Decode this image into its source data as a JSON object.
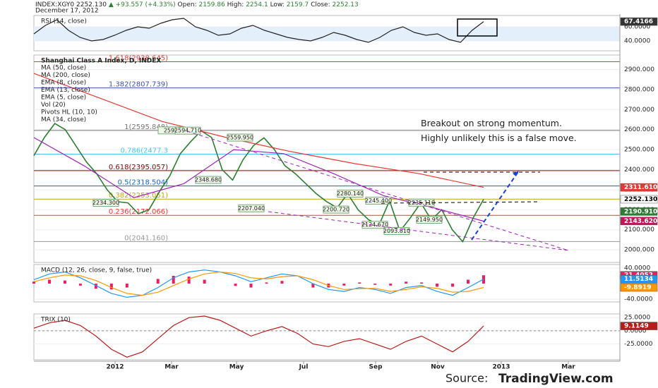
{
  "header": {
    "symbol": "INDEX:XGY0",
    "last": "2252.130",
    "change": "▲ +93.557 (+4.33%)",
    "open_label": "Open:",
    "open": "2159.86",
    "high_label": "High:",
    "high": "2254.1",
    "low_label": "Low:",
    "low": "2159.7",
    "close_label": "Close:",
    "close": "2252.13",
    "date": "December 17, 2012"
  },
  "chart_data": [
    {
      "type": "line",
      "title": "RSI (14, close)",
      "ylim": [
        26,
        76
      ],
      "yticks": [
        {
          "value": 60,
          "label": "60.0000"
        },
        {
          "value": 40,
          "label": "40.0000"
        }
      ],
      "band_fill": "#e3effb",
      "series": [
        {
          "color": "#222222",
          "values": [
            50,
            62,
            70,
            55,
            45,
            40,
            42,
            48,
            55,
            60,
            58,
            65,
            70,
            72,
            60,
            55,
            48,
            50,
            58,
            62,
            55,
            50,
            45,
            42,
            40,
            45,
            52,
            48,
            42,
            38,
            45,
            55,
            60,
            52,
            48,
            50,
            42,
            38,
            55,
            67.4166
          ]
        }
      ],
      "badges": [
        {
          "value": 67.4166,
          "label": "67.4166",
          "color": "#333333"
        }
      ]
    },
    {
      "type": "line",
      "title": "Shanghai Class A Index, D, INDEX",
      "ylim": [
        1937,
        2972
      ],
      "yticks": [
        {
          "value": 2900,
          "label": "2900.000"
        },
        {
          "value": 2800,
          "label": "2800.000"
        },
        {
          "value": 2700,
          "label": "2700.000"
        },
        {
          "value": 2600,
          "label": "2600.000"
        },
        {
          "value": 2500,
          "label": "2500.000"
        },
        {
          "value": 2400,
          "label": "2400.000"
        },
        {
          "value": 2300,
          "label": "2300.000"
        },
        {
          "value": 2200,
          "label": "2200.000"
        },
        {
          "value": 2100,
          "label": "2100.000"
        },
        {
          "value": 2000,
          "label": "2000.000"
        }
      ],
      "series": [
        {
          "color": "#2e7d32",
          "values": [
            2470,
            2560,
            2630,
            2600,
            2520,
            2440,
            2380,
            2300,
            2240,
            2234,
            2180,
            2200,
            2290,
            2370,
            2480,
            2540,
            2594,
            2560,
            2400,
            2348,
            2450,
            2520,
            2559,
            2500,
            2420,
            2380,
            2330,
            2280,
            2240,
            2210,
            2280,
            2200,
            2150,
            2124,
            2245,
            2093,
            2160,
            2235,
            2149,
            2200,
            2100,
            2041,
            2159,
            2252
          ]
        },
        {
          "name": "MA (50, close)",
          "color": "#9c27b0",
          "values": [
            2560,
            2420,
            2260,
            2330,
            2500,
            2480,
            2380,
            2270,
            2210,
            2143
          ]
        },
        {
          "name": "MA (200, close)",
          "color": "#e53935",
          "values": [
            2880,
            2760,
            2640,
            2560,
            2490,
            2430,
            2380,
            2311.61
          ]
        }
      ],
      "legend_extra": [
        "EMA (8, close)",
        "EMA (13, close)",
        "EMA (5, close)",
        "Vol (20)",
        "Pivots HL (10, 10)",
        "MA (34, close)"
      ],
      "levels": [
        {
          "value": 2938.645,
          "label": "1.618(2938.645)",
          "color": "#e53935"
        },
        {
          "value": 2807.739,
          "label": "1.382(2807.739)",
          "color": "#3f51b5"
        },
        {
          "value": 2595.848,
          "label": "1(2595.848)",
          "color": "#777777"
        },
        {
          "value": 2477.3,
          "label": "0.786(2477.3",
          "color": "#4fc3f7"
        },
        {
          "value": 2395.057,
          "label": "0.618(2395.057)",
          "color": "#8b0000"
        },
        {
          "value": 2318.504,
          "label": "0.5(2318.504)",
          "color": "#1565c0"
        },
        {
          "value": 2253.051,
          "label": "0.382(2253.051)",
          "color": "#c9a400"
        },
        {
          "value": 2172.066,
          "label": "0.236(2172.066)",
          "color": "#e53935"
        },
        {
          "value": 2041.16,
          "label": "0(2041.160)",
          "color": "#999999"
        }
      ],
      "point_labels": [
        {
          "value": 2596,
          "label": "2596"
        },
        {
          "value": 2594.71,
          "label": "2594.710"
        },
        {
          "value": 2559.95,
          "label": "2559.950"
        },
        {
          "value": 2348.68,
          "label": "2348.680"
        },
        {
          "value": 2234.3,
          "label": "2234.300"
        },
        {
          "value": 2207.04,
          "label": "2207.040"
        },
        {
          "value": 2280.14,
          "label": "2280.140"
        },
        {
          "value": 2245.4,
          "label": "2245.400"
        },
        {
          "value": 2235.11,
          "label": "2235.110"
        },
        {
          "value": 2200.72,
          "label": "2200.720"
        },
        {
          "value": 2124.67,
          "label": "2124.670"
        },
        {
          "value": 2093.81,
          "label": "2093.810"
        },
        {
          "value": 2149.95,
          "label": "2149.950"
        }
      ],
      "annotations": [
        "Breakout on strong momentum.",
        "Highly unlikely this is a false move."
      ],
      "badges": [
        {
          "value": 2311.61,
          "label": "2311.610",
          "color": "#e53935"
        },
        {
          "value": 2252.13,
          "label": "2252.130",
          "color": "#ffffff"
        },
        {
          "value": 2190.91,
          "label": "2190.910",
          "color": "#2e7d32"
        },
        {
          "value": 2143.62,
          "label": "2143.620",
          "color": "#c2185b"
        }
      ]
    },
    {
      "type": "line",
      "title": "MACD (12, 26, close, 9, false, true)",
      "ylim": [
        -47,
        49
      ],
      "yticks": [
        {
          "value": 40,
          "label": "40.0000"
        },
        {
          "value": -40,
          "label": "-40.0000"
        }
      ],
      "histogram": {
        "color": "#e91e63",
        "values": [
          5,
          10,
          8,
          -5,
          -13,
          -15,
          -10,
          0,
          12,
          20,
          18,
          10,
          0,
          -6,
          -10,
          3,
          7,
          0,
          -10,
          -10,
          -5,
          3,
          -3,
          -5,
          5,
          3,
          -8,
          -8,
          10,
          21.4052
        ]
      },
      "series": [
        {
          "color": "#2196f3",
          "values": [
            10,
            25,
            30,
            15,
            -5,
            -25,
            -35,
            -30,
            -10,
            15,
            30,
            35,
            30,
            20,
            5,
            15,
            25,
            20,
            0,
            -15,
            -20,
            -10,
            -15,
            -25,
            -10,
            -5,
            -20,
            -30,
            -10,
            11.5134
          ]
        },
        {
          "color": "#ff9800",
          "values": [
            5,
            15,
            22,
            20,
            8,
            -10,
            -25,
            -30,
            -22,
            -5,
            12,
            25,
            30,
            26,
            15,
            12,
            18,
            20,
            10,
            -5,
            -15,
            -13,
            -12,
            -20,
            -15,
            -8,
            -12,
            -22,
            -20,
            -9.8919
          ]
        }
      ],
      "badges": [
        {
          "value": 21.4052,
          "label": "21.4052",
          "color": "#e91e63"
        },
        {
          "value": 11.5134,
          "label": "11.5134",
          "color": "#2196f3"
        },
        {
          "value": -9.8919,
          "label": "-9.8919",
          "color": "#ff9800"
        }
      ]
    },
    {
      "type": "line",
      "title": "TRIX (10)",
      "ylim": [
        -55,
        32
      ],
      "yticks": [
        {
          "value": 25,
          "label": "25.0000"
        },
        {
          "value": 0,
          "label": "0.0000"
        },
        {
          "value": -25,
          "label": "-25.0000"
        }
      ],
      "zero_line": true,
      "series": [
        {
          "color": "#b71c1c",
          "values": [
            5,
            15,
            20,
            10,
            -10,
            -35,
            -50,
            -40,
            -15,
            10,
            25,
            28,
            20,
            5,
            -10,
            0,
            8,
            -5,
            -25,
            -30,
            -20,
            -15,
            -25,
            -35,
            -20,
            -10,
            -25,
            -40,
            -20,
            9.1149
          ]
        }
      ],
      "badges": [
        {
          "value": 9.1149,
          "label": "9.1149",
          "color": "#b71c1c"
        }
      ]
    }
  ],
  "x_axis": {
    "labels": [
      "2012",
      "Mar",
      "May",
      "Jul",
      "Sep",
      "Nov",
      "2013",
      "Mar"
    ]
  },
  "source": {
    "prefix": "Source:",
    "site": "TradingView.com"
  }
}
